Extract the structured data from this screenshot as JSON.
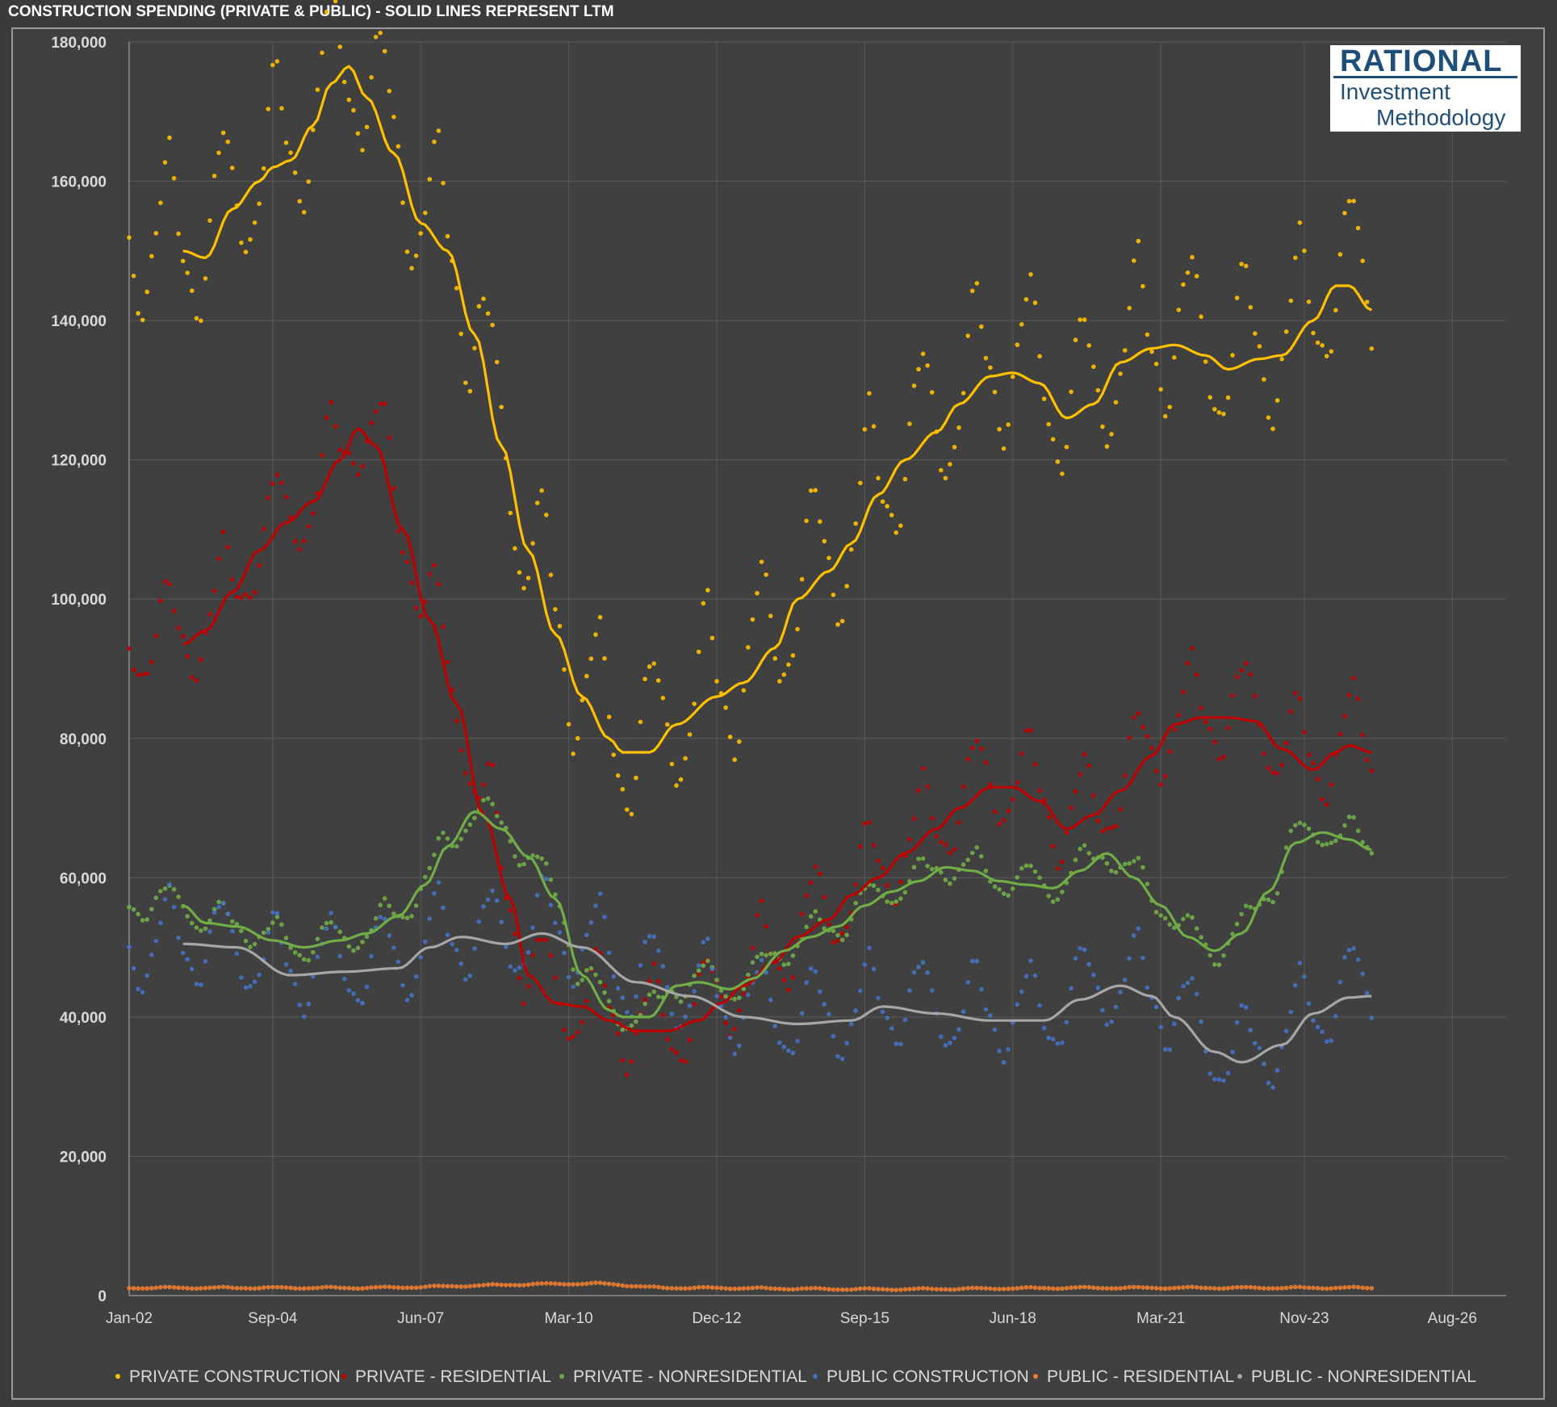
{
  "title": "CONSTRUCTION SPENDING (PRIVATE & PUBLIC) - SOLID LINES REPRESENT LTM",
  "logo": {
    "line1": "RATIONAL",
    "line2": "Investment",
    "line3": "Methodology"
  },
  "chart_data": {
    "type": "scatter",
    "title": "CONSTRUCTION SPENDING (PRIVATE & PUBLIC) - SOLID LINES REPRESENT LTM",
    "xlabel": "",
    "ylabel": "",
    "ylim": [
      0,
      180000
    ],
    "yticks": [
      0,
      20000,
      40000,
      60000,
      80000,
      100000,
      120000,
      140000,
      160000,
      180000
    ],
    "ytick_labels": [
      "0",
      "20,000",
      "40,000",
      "60,000",
      "80,000",
      "100,000",
      "120,000",
      "140,000",
      "160,000",
      "180,000"
    ],
    "xlim": [
      "2002-01",
      "2027-08"
    ],
    "xticks": [
      "2002-01",
      "2004-09",
      "2007-06",
      "2010-03",
      "2012-12",
      "2015-09",
      "2018-06",
      "2021-03",
      "2023-11",
      "2026-08"
    ],
    "xtick_labels": [
      "Jan-02",
      "Sep-04",
      "Jun-07",
      "Mar-10",
      "Dec-12",
      "Sep-15",
      "Jun-18",
      "Mar-21",
      "Nov-23",
      "Aug-26"
    ],
    "grid": true,
    "legend_position": "bottom",
    "data_range": [
      "2002-01",
      "2025-02"
    ],
    "series": [
      {
        "name": "PRIVATE CONSTRUCTION",
        "color": "#ffc000",
        "seasonal_amplitude": 16000,
        "ltm": [
          [
            "2003-01",
            150000
          ],
          [
            "2003-06",
            149000
          ],
          [
            "2003-12",
            156000
          ],
          [
            "2004-06",
            160000
          ],
          [
            "2004-09",
            162000
          ],
          [
            "2005-01",
            163000
          ],
          [
            "2005-06",
            168000
          ],
          [
            "2005-10",
            174000
          ],
          [
            "2006-02",
            176500
          ],
          [
            "2006-06",
            172000
          ],
          [
            "2006-12",
            164000
          ],
          [
            "2007-06",
            154000
          ],
          [
            "2007-12",
            150000
          ],
          [
            "2008-06",
            138000
          ],
          [
            "2008-12",
            122000
          ],
          [
            "2009-06",
            107000
          ],
          [
            "2009-12",
            95000
          ],
          [
            "2010-06",
            86000
          ],
          [
            "2010-12",
            80000
          ],
          [
            "2011-03",
            78000
          ],
          [
            "2011-09",
            78000
          ],
          [
            "2012-03",
            82000
          ],
          [
            "2012-12",
            86000
          ],
          [
            "2013-06",
            88000
          ],
          [
            "2014-01",
            93000
          ],
          [
            "2014-06",
            100000
          ],
          [
            "2015-01",
            104000
          ],
          [
            "2015-06",
            108000
          ],
          [
            "2015-12",
            115000
          ],
          [
            "2016-06",
            120000
          ],
          [
            "2017-01",
            124000
          ],
          [
            "2017-06",
            128000
          ],
          [
            "2018-01",
            132000
          ],
          [
            "2018-06",
            132500
          ],
          [
            "2018-12",
            131000
          ],
          [
            "2019-06",
            126000
          ],
          [
            "2019-12",
            128000
          ],
          [
            "2020-06",
            134000
          ],
          [
            "2021-01",
            136000
          ],
          [
            "2021-06",
            136500
          ],
          [
            "2022-01",
            135000
          ],
          [
            "2022-06",
            133000
          ],
          [
            "2023-01",
            134500
          ],
          [
            "2023-06",
            135000
          ],
          [
            "2024-01",
            140000
          ],
          [
            "2024-06",
            145000
          ],
          [
            "2024-09",
            145000
          ],
          [
            "2025-02",
            141500
          ]
        ]
      },
      {
        "name": "PRIVATE - RESIDENTIAL",
        "color": "#c00000",
        "seasonal_amplitude": 10000,
        "ltm": [
          [
            "2003-01",
            93500
          ],
          [
            "2003-06",
            95500
          ],
          [
            "2003-12",
            101000
          ],
          [
            "2004-06",
            107000
          ],
          [
            "2004-12",
            111000
          ],
          [
            "2005-06",
            114000
          ],
          [
            "2005-12",
            120000
          ],
          [
            "2006-04",
            124500
          ],
          [
            "2006-08",
            122000
          ],
          [
            "2007-02",
            110000
          ],
          [
            "2007-08",
            97000
          ],
          [
            "2008-02",
            85000
          ],
          [
            "2008-08",
            69000
          ],
          [
            "2009-02",
            57000
          ],
          [
            "2009-06",
            46000
          ],
          [
            "2009-12",
            42000
          ],
          [
            "2010-06",
            41500
          ],
          [
            "2010-12",
            39500
          ],
          [
            "2011-06",
            38000
          ],
          [
            "2012-01",
            38000
          ],
          [
            "2012-08",
            39500
          ],
          [
            "2013-01",
            42000
          ],
          [
            "2013-06",
            44500
          ],
          [
            "2014-01",
            48000
          ],
          [
            "2014-06",
            51500
          ],
          [
            "2015-01",
            54000
          ],
          [
            "2015-06",
            57500
          ],
          [
            "2015-12",
            60000
          ],
          [
            "2016-06",
            63500
          ],
          [
            "2017-01",
            67000
          ],
          [
            "2017-06",
            70000
          ],
          [
            "2018-01",
            73000
          ],
          [
            "2018-06",
            73000
          ],
          [
            "2018-12",
            71000
          ],
          [
            "2019-06",
            67000
          ],
          [
            "2019-12",
            69000
          ],
          [
            "2020-06",
            72500
          ],
          [
            "2021-01",
            77500
          ],
          [
            "2021-06",
            82000
          ],
          [
            "2021-12",
            83000
          ],
          [
            "2022-06",
            83000
          ],
          [
            "2022-12",
            82500
          ],
          [
            "2023-06",
            78500
          ],
          [
            "2024-01",
            75500
          ],
          [
            "2024-06",
            78000
          ],
          [
            "2024-09",
            79000
          ],
          [
            "2025-02",
            78000
          ]
        ]
      },
      {
        "name": "PRIVATE - NONRESIDENTIAL",
        "color": "#70ad47",
        "seasonal_amplitude": 3500,
        "ltm": [
          [
            "2003-01",
            56000
          ],
          [
            "2003-06",
            53500
          ],
          [
            "2004-01",
            53000
          ],
          [
            "2004-09",
            51000
          ],
          [
            "2005-04",
            50000
          ],
          [
            "2005-12",
            51000
          ],
          [
            "2006-06",
            52000
          ],
          [
            "2007-01",
            54500
          ],
          [
            "2007-07",
            59000
          ],
          [
            "2007-12",
            64500
          ],
          [
            "2008-06",
            69500
          ],
          [
            "2008-12",
            67000
          ],
          [
            "2009-06",
            63000
          ],
          [
            "2009-12",
            57000
          ],
          [
            "2010-06",
            46000
          ],
          [
            "2010-12",
            41000
          ],
          [
            "2011-03",
            40000
          ],
          [
            "2011-09",
            40000
          ],
          [
            "2012-03",
            44500
          ],
          [
            "2012-08",
            45000
          ],
          [
            "2013-03",
            44000
          ],
          [
            "2013-08",
            45500
          ],
          [
            "2014-03",
            49500
          ],
          [
            "2014-09",
            51500
          ],
          [
            "2015-03",
            53000
          ],
          [
            "2015-09",
            56000
          ],
          [
            "2016-03",
            58000
          ],
          [
            "2016-09",
            59500
          ],
          [
            "2017-03",
            61500
          ],
          [
            "2017-09",
            61000
          ],
          [
            "2018-03",
            59500
          ],
          [
            "2018-09",
            59000
          ],
          [
            "2019-03",
            58500
          ],
          [
            "2019-09",
            61000
          ],
          [
            "2020-03",
            63500
          ],
          [
            "2020-09",
            60000
          ],
          [
            "2021-03",
            56000
          ],
          [
            "2021-09",
            51500
          ],
          [
            "2022-03",
            49500
          ],
          [
            "2022-09",
            52000
          ],
          [
            "2023-03",
            58000
          ],
          [
            "2023-09",
            65000
          ],
          [
            "2024-03",
            66500
          ],
          [
            "2024-09",
            65500
          ],
          [
            "2025-02",
            64000
          ]
        ]
      },
      {
        "name": "PUBLIC CONSTRUCTION",
        "color": "#4472c4",
        "seasonal_amplitude": 9000,
        "ltm": [
          [
            "2002-01",
            49000
          ],
          [
            "2003-01",
            50000
          ],
          [
            "2004-01",
            49000
          ],
          [
            "2005-01",
            46000
          ],
          [
            "2006-01",
            46500
          ],
          [
            "2007-01",
            47000
          ],
          [
            "2007-08",
            50000
          ],
          [
            "2008-03",
            51000
          ],
          [
            "2009-01",
            50500
          ],
          [
            "2009-09",
            52000
          ],
          [
            "2010-06",
            50000
          ],
          [
            "2011-06",
            45000
          ],
          [
            "2012-06",
            43000
          ],
          [
            "2013-06",
            40500
          ],
          [
            "2014-06",
            39000
          ],
          [
            "2015-06",
            39500
          ],
          [
            "2016-01",
            41500
          ],
          [
            "2017-01",
            40500
          ],
          [
            "2018-01",
            39500
          ],
          [
            "2019-01",
            39500
          ],
          [
            "2019-09",
            42500
          ],
          [
            "2020-06",
            44500
          ],
          [
            "2021-01",
            43000
          ],
          [
            "2021-06",
            40000
          ],
          [
            "2022-03",
            35000
          ],
          [
            "2022-09",
            33500
          ],
          [
            "2023-06",
            36000
          ],
          [
            "2024-01",
            40500
          ],
          [
            "2024-09",
            42800
          ],
          [
            "2025-02",
            43000
          ]
        ]
      },
      {
        "name": "PUBLIC - RESIDENTIAL",
        "color": "#ed7d31",
        "seasonal_amplitude": 150,
        "ltm": [
          [
            "2002-01",
            1100
          ],
          [
            "2006-01",
            1100
          ],
          [
            "2010-09",
            1700
          ],
          [
            "2012-01",
            1100
          ],
          [
            "2016-01",
            900
          ],
          [
            "2020-01",
            1100
          ],
          [
            "2025-02",
            1100
          ]
        ]
      },
      {
        "name": "PUBLIC - NONRESIDENTIAL",
        "color": "#a6a6a6",
        "seasonal_amplitude": 0,
        "ltm": [
          [
            "2003-01",
            50500
          ],
          [
            "2004-01",
            50000
          ],
          [
            "2005-01",
            46000
          ],
          [
            "2006-01",
            46500
          ],
          [
            "2007-01",
            47000
          ],
          [
            "2007-08",
            50000
          ],
          [
            "2008-03",
            51500
          ],
          [
            "2009-01",
            50500
          ],
          [
            "2009-09",
            52000
          ],
          [
            "2010-06",
            50000
          ],
          [
            "2011-06",
            45000
          ],
          [
            "2012-06",
            43000
          ],
          [
            "2013-06",
            40000
          ],
          [
            "2014-06",
            39000
          ],
          [
            "2015-06",
            39500
          ],
          [
            "2016-01",
            41500
          ],
          [
            "2017-01",
            40500
          ],
          [
            "2018-01",
            39500
          ],
          [
            "2019-01",
            39500
          ],
          [
            "2019-09",
            42500
          ],
          [
            "2020-06",
            44500
          ],
          [
            "2021-01",
            43000
          ],
          [
            "2021-06",
            40000
          ],
          [
            "2022-03",
            35000
          ],
          [
            "2022-09",
            33500
          ],
          [
            "2023-06",
            36000
          ],
          [
            "2024-01",
            40500
          ],
          [
            "2024-09",
            42800
          ],
          [
            "2025-02",
            43000
          ]
        ]
      }
    ]
  }
}
